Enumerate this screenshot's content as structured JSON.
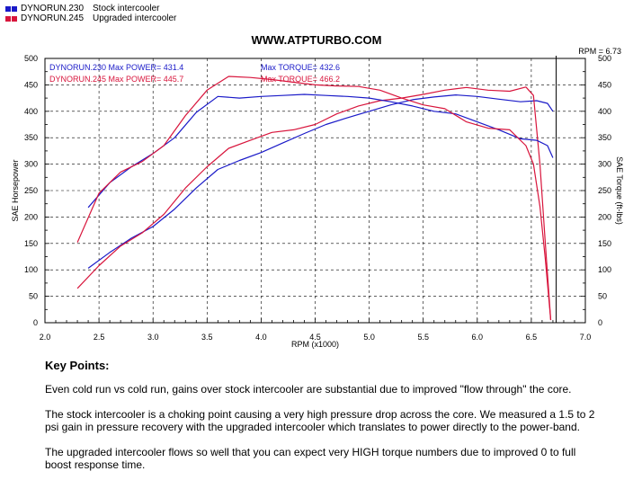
{
  "legend": [
    {
      "run": "DYNORUN.230",
      "label": "Stock intercooler",
      "color": "#1a1ac8"
    },
    {
      "run": "DYNORUN.245",
      "label": "Upgraded intercooler",
      "color": "#d8153c"
    }
  ],
  "site_title": "WWW.ATPTURBO.COM",
  "rpm_readout": "RPM = 6.73",
  "chart_data": {
    "type": "line",
    "xlabel": "RPM (x1000)",
    "ylabel_left": "SAE Horsepower",
    "ylabel_right": "SAE Torque (ft-lbs)",
    "xlim": [
      2.0,
      7.0
    ],
    "ylim": [
      0,
      500
    ],
    "x_ticks": [
      "2.0",
      "2.5",
      "3.0",
      "3.5",
      "4.0",
      "4.5",
      "5.0",
      "5.5",
      "6.0",
      "6.5",
      "7.0"
    ],
    "y_ticks": [
      "0",
      "50",
      "100",
      "150",
      "200",
      "250",
      "300",
      "350",
      "400",
      "450",
      "500"
    ],
    "grid": true,
    "cursor_rpm": 6.73,
    "annotations": [
      {
        "text": "DYNORUN.230  Max POWER= 431.4",
        "color": "#1a1ac8"
      },
      {
        "text": "DYNORUN.245  Max POWER= 445.7",
        "color": "#d8153c"
      },
      {
        "text": "Max TORQUE= 432.6",
        "color": "#1a1ac8"
      },
      {
        "text": "Max TORQUE= 466.2",
        "color": "#d8153c"
      }
    ],
    "series": [
      {
        "name": "DYNORUN.230",
        "measure": "power",
        "color": "#1a1ac8",
        "x": [
          2.4,
          2.6,
          2.8,
          3.0,
          3.2,
          3.4,
          3.6,
          3.8,
          4.0,
          4.2,
          4.4,
          4.6,
          4.8,
          5.0,
          5.2,
          5.4,
          5.6,
          5.8,
          6.0,
          6.2,
          6.4,
          6.55,
          6.65,
          6.7
        ],
        "y": [
          103,
          133,
          160,
          182,
          215,
          255,
          290,
          307,
          322,
          340,
          358,
          375,
          388,
          400,
          412,
          422,
          427,
          431,
          428,
          423,
          418,
          420,
          415,
          400
        ]
      },
      {
        "name": "DYNORUN.245",
        "measure": "power",
        "color": "#d8153c",
        "x": [
          2.3,
          2.5,
          2.7,
          2.9,
          3.1,
          3.3,
          3.5,
          3.7,
          3.9,
          4.1,
          4.3,
          4.5,
          4.7,
          4.9,
          5.1,
          5.3,
          5.5,
          5.7,
          5.9,
          6.1,
          6.3,
          6.45,
          6.52,
          6.58,
          6.63,
          6.68
        ],
        "y": [
          65,
          108,
          145,
          170,
          205,
          255,
          295,
          330,
          345,
          360,
          365,
          375,
          395,
          410,
          420,
          425,
          432,
          440,
          445,
          440,
          438,
          446,
          430,
          300,
          150,
          5
        ]
      },
      {
        "name": "DYNORUN.230",
        "measure": "torque",
        "color": "#1a1ac8",
        "x": [
          2.4,
          2.6,
          2.8,
          3.0,
          3.2,
          3.4,
          3.6,
          3.8,
          4.0,
          4.2,
          4.4,
          4.6,
          4.8,
          5.0,
          5.2,
          5.4,
          5.6,
          5.8,
          6.0,
          6.2,
          6.4,
          6.55,
          6.65,
          6.7
        ],
        "y": [
          218,
          265,
          295,
          320,
          350,
          398,
          428,
          425,
          428,
          430,
          432,
          430,
          428,
          425,
          418,
          410,
          400,
          395,
          380,
          365,
          348,
          345,
          335,
          312
        ]
      },
      {
        "name": "DYNORUN.245",
        "measure": "torque",
        "color": "#d8153c",
        "x": [
          2.3,
          2.5,
          2.7,
          2.9,
          3.1,
          3.3,
          3.5,
          3.7,
          3.9,
          4.1,
          4.3,
          4.5,
          4.7,
          4.9,
          5.1,
          5.3,
          5.5,
          5.7,
          5.9,
          6.1,
          6.3,
          6.45,
          6.52,
          6.58,
          6.63,
          6.68
        ],
        "y": [
          152,
          245,
          285,
          305,
          335,
          392,
          440,
          466,
          464,
          460,
          455,
          450,
          448,
          447,
          440,
          425,
          412,
          405,
          380,
          368,
          365,
          335,
          300,
          220,
          120,
          5
        ]
      }
    ]
  },
  "key_points": {
    "heading": "Key Points:",
    "paragraphs": [
      "Even cold run vs cold run, gains over stock intercooler are substantial due to improved \"flow through\" the core.",
      "The stock intercooler is a choking point causing a very high pressure drop across the core. We measured a 1.5 to 2 psi gain in pressure recovery with the upgraded intercooler which translates to power directly to the power-band.",
      "The upgraded intercooler flows so well that you can expect very HIGH torque numbers due to improved 0 to full boost response time."
    ]
  }
}
